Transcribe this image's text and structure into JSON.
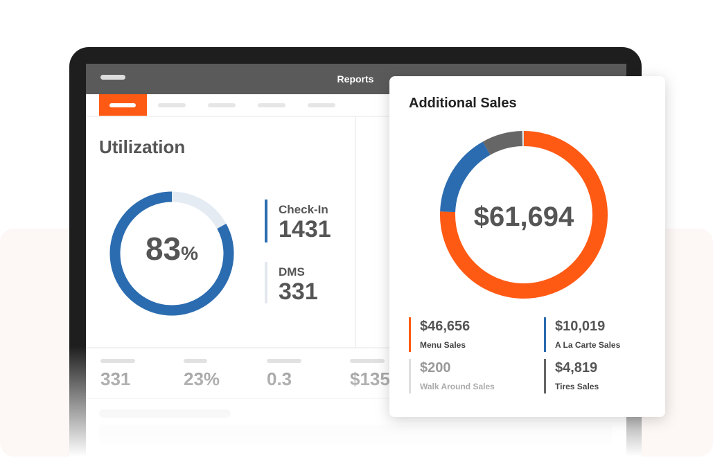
{
  "header": {
    "title": "Reports"
  },
  "utilization": {
    "title": "Utilization",
    "value": 83,
    "unit": "%",
    "color": "#2b6cb0",
    "metrics": [
      {
        "label": "Check-In",
        "value": 1431
      },
      {
        "label": "DMS",
        "value": 331
      }
    ]
  },
  "stats": [
    "331",
    "23%",
    "0.3",
    "$135"
  ],
  "additional_sales": {
    "title": "Additional Sales",
    "total": "$61,694",
    "segments": [
      {
        "name": "Menu Sales",
        "value": 46656,
        "value_label": "$46,656",
        "color": "#ff5a14"
      },
      {
        "name": "A La Carte Sales",
        "value": 10019,
        "value_label": "$10,019",
        "color": "#2b6cb0"
      },
      {
        "name": "Walk Around Sales",
        "value": 200,
        "value_label": "$200",
        "color": "#dedede"
      },
      {
        "name": "Tires Sales",
        "value": 4819,
        "value_label": "$4,819",
        "color": "#666666"
      }
    ]
  }
}
